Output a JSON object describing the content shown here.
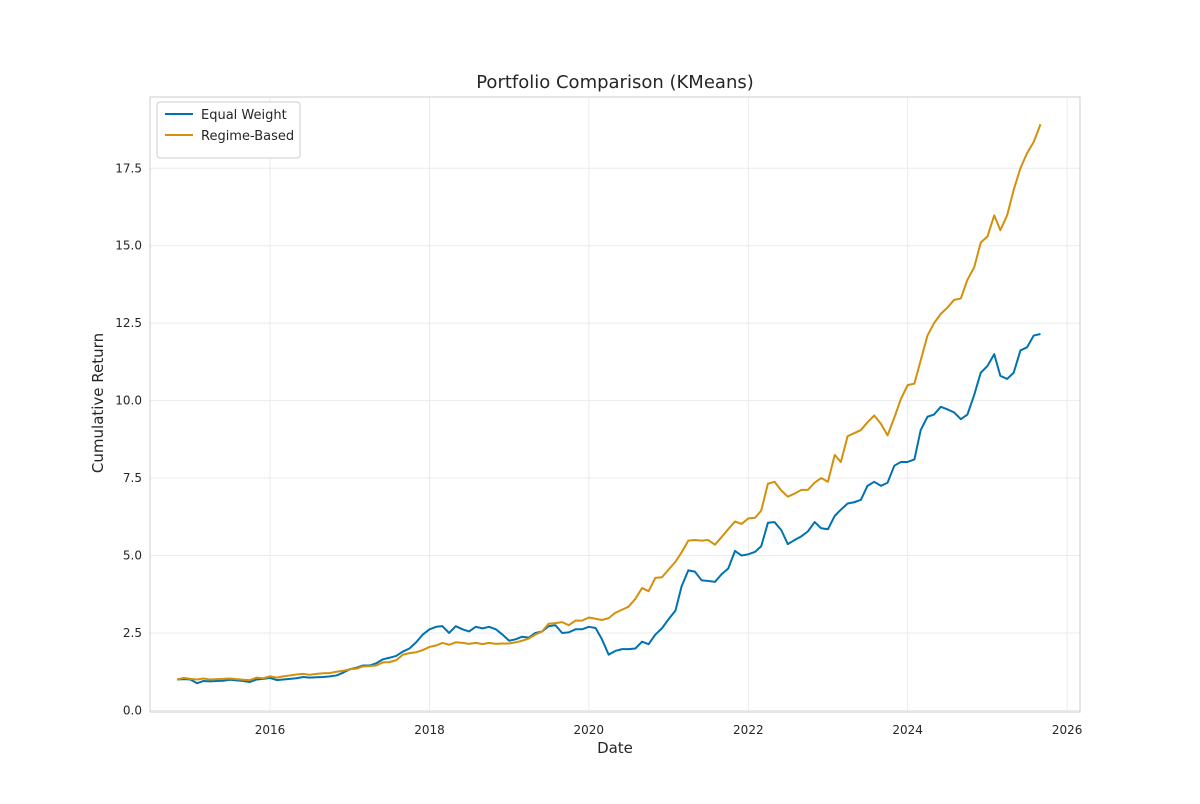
{
  "chart_data": {
    "type": "line",
    "title": "Portfolio Comparison (KMeans)",
    "xlabel": "Date",
    "ylabel": "Cumulative Return",
    "x_is_date": true,
    "xlim": [
      "2014-06-30",
      "2026-03-01"
    ],
    "ylim": [
      -0.05,
      19.8
    ],
    "x_ticks": [
      {
        "date": "2016-01-01",
        "label": "2016"
      },
      {
        "date": "2018-01-01",
        "label": "2018"
      },
      {
        "date": "2020-01-01",
        "label": "2020"
      },
      {
        "date": "2022-01-01",
        "label": "2022"
      },
      {
        "date": "2024-01-01",
        "label": "2024"
      },
      {
        "date": "2026-01-01",
        "label": "2026"
      }
    ],
    "y_ticks": [
      {
        "value": 0,
        "label": "0.0"
      },
      {
        "value": 2.5,
        "label": "2.5"
      },
      {
        "value": 5,
        "label": "5.0"
      },
      {
        "value": 7.5,
        "label": "7.5"
      },
      {
        "value": 10,
        "label": "10.0"
      },
      {
        "value": 12.5,
        "label": "12.5"
      },
      {
        "value": 15,
        "label": "15.0"
      },
      {
        "value": 17.5,
        "label": "17.5"
      }
    ],
    "grid": true,
    "legend": "upper-left",
    "series": [
      {
        "name": "Equal Weight",
        "color": "#0072b2",
        "points": [
          [
            "2014-11-01",
            1.0
          ],
          [
            "2014-12-01",
            1.01
          ],
          [
            "2015-01-01",
            1.0
          ],
          [
            "2015-02-01",
            0.88
          ],
          [
            "2015-03-01",
            0.95
          ],
          [
            "2015-04-01",
            0.94
          ],
          [
            "2015-05-01",
            0.95
          ],
          [
            "2015-06-01",
            0.96
          ],
          [
            "2015-07-01",
            0.99
          ],
          [
            "2015-08-01",
            0.97
          ],
          [
            "2015-09-01",
            0.95
          ],
          [
            "2015-10-01",
            0.92
          ],
          [
            "2015-11-01",
            1.0
          ],
          [
            "2015-12-01",
            1.02
          ],
          [
            "2016-01-01",
            1.05
          ],
          [
            "2016-02-01",
            0.98
          ],
          [
            "2016-03-01",
            1.0
          ],
          [
            "2016-04-01",
            1.02
          ],
          [
            "2016-05-01",
            1.04
          ],
          [
            "2016-06-01",
            1.08
          ],
          [
            "2016-07-01",
            1.06
          ],
          [
            "2016-08-01",
            1.07
          ],
          [
            "2016-09-01",
            1.08
          ],
          [
            "2016-10-01",
            1.1
          ],
          [
            "2016-11-01",
            1.13
          ],
          [
            "2016-12-01",
            1.22
          ],
          [
            "2017-01-01",
            1.33
          ],
          [
            "2017-02-01",
            1.38
          ],
          [
            "2017-03-01",
            1.45
          ],
          [
            "2017-04-01",
            1.45
          ],
          [
            "2017-05-01",
            1.52
          ],
          [
            "2017-06-01",
            1.65
          ],
          [
            "2017-07-01",
            1.7
          ],
          [
            "2017-08-01",
            1.76
          ],
          [
            "2017-09-01",
            1.9
          ],
          [
            "2017-10-01",
            2.0
          ],
          [
            "2017-11-01",
            2.2
          ],
          [
            "2017-12-01",
            2.45
          ],
          [
            "2018-01-01",
            2.62
          ],
          [
            "2018-02-01",
            2.7
          ],
          [
            "2018-03-01",
            2.72
          ],
          [
            "2018-04-01",
            2.5
          ],
          [
            "2018-05-01",
            2.72
          ],
          [
            "2018-06-01",
            2.62
          ],
          [
            "2018-07-01",
            2.55
          ],
          [
            "2018-08-01",
            2.7
          ],
          [
            "2018-09-01",
            2.65
          ],
          [
            "2018-10-01",
            2.7
          ],
          [
            "2018-11-01",
            2.62
          ],
          [
            "2018-12-01",
            2.45
          ],
          [
            "2019-01-01",
            2.25
          ],
          [
            "2019-02-01",
            2.3
          ],
          [
            "2019-03-01",
            2.38
          ],
          [
            "2019-04-01",
            2.35
          ],
          [
            "2019-05-01",
            2.5
          ],
          [
            "2019-06-01",
            2.55
          ],
          [
            "2019-07-01",
            2.72
          ],
          [
            "2019-08-01",
            2.75
          ],
          [
            "2019-09-01",
            2.5
          ],
          [
            "2019-10-01",
            2.52
          ],
          [
            "2019-11-01",
            2.62
          ],
          [
            "2019-12-01",
            2.62
          ],
          [
            "2020-01-01",
            2.7
          ],
          [
            "2020-02-01",
            2.66
          ],
          [
            "2020-03-01",
            2.3
          ],
          [
            "2020-04-01",
            1.8
          ],
          [
            "2020-05-01",
            1.92
          ],
          [
            "2020-06-01",
            1.98
          ],
          [
            "2020-07-01",
            1.98
          ],
          [
            "2020-08-01",
            2.0
          ],
          [
            "2020-09-01",
            2.22
          ],
          [
            "2020-10-01",
            2.14
          ],
          [
            "2020-11-01",
            2.45
          ],
          [
            "2020-12-01",
            2.65
          ],
          [
            "2021-01-01",
            2.95
          ],
          [
            "2021-02-01",
            3.22
          ],
          [
            "2021-03-01",
            4.0
          ],
          [
            "2021-04-01",
            4.52
          ],
          [
            "2021-05-01",
            4.48
          ],
          [
            "2021-06-01",
            4.2
          ],
          [
            "2021-07-01",
            4.18
          ],
          [
            "2021-08-01",
            4.15
          ],
          [
            "2021-09-01",
            4.4
          ],
          [
            "2021-10-01",
            4.58
          ],
          [
            "2021-11-01",
            5.15
          ],
          [
            "2021-12-01",
            5.0
          ],
          [
            "2022-01-01",
            5.04
          ],
          [
            "2022-02-01",
            5.12
          ],
          [
            "2022-03-01",
            5.3
          ],
          [
            "2022-04-01",
            6.06
          ],
          [
            "2022-05-01",
            6.08
          ],
          [
            "2022-06-01",
            5.82
          ],
          [
            "2022-07-01",
            5.37
          ],
          [
            "2022-08-01",
            5.5
          ],
          [
            "2022-09-01",
            5.62
          ],
          [
            "2022-10-01",
            5.78
          ],
          [
            "2022-11-01",
            6.08
          ],
          [
            "2022-12-01",
            5.88
          ],
          [
            "2023-01-01",
            5.85
          ],
          [
            "2023-02-01",
            6.28
          ],
          [
            "2023-03-01",
            6.48
          ],
          [
            "2023-04-01",
            6.68
          ],
          [
            "2023-05-01",
            6.72
          ],
          [
            "2023-06-01",
            6.8
          ],
          [
            "2023-07-01",
            7.25
          ],
          [
            "2023-08-01",
            7.38
          ],
          [
            "2023-09-01",
            7.25
          ],
          [
            "2023-10-01",
            7.35
          ],
          [
            "2023-11-01",
            7.9
          ],
          [
            "2023-12-01",
            8.02
          ],
          [
            "2024-01-01",
            8.02
          ],
          [
            "2024-02-01",
            8.1
          ],
          [
            "2024-03-01",
            9.05
          ],
          [
            "2024-04-01",
            9.48
          ],
          [
            "2024-05-01",
            9.55
          ],
          [
            "2024-06-01",
            9.8
          ],
          [
            "2024-07-01",
            9.72
          ],
          [
            "2024-08-01",
            9.62
          ],
          [
            "2024-09-01",
            9.4
          ],
          [
            "2024-10-01",
            9.55
          ],
          [
            "2024-11-01",
            10.18
          ],
          [
            "2024-12-01",
            10.9
          ],
          [
            "2025-01-01",
            11.12
          ],
          [
            "2025-02-01",
            11.5
          ],
          [
            "2025-03-01",
            10.8
          ],
          [
            "2025-04-01",
            10.7
          ],
          [
            "2025-05-01",
            10.9
          ],
          [
            "2025-06-01",
            11.62
          ],
          [
            "2025-07-01",
            11.72
          ],
          [
            "2025-08-01",
            12.1
          ],
          [
            "2025-09-01",
            12.15
          ]
        ]
      },
      {
        "name": "Regime-Based",
        "color": "#d4900a",
        "points": [
          [
            "2014-11-01",
            1.0
          ],
          [
            "2014-12-01",
            1.05
          ],
          [
            "2015-01-01",
            1.02
          ],
          [
            "2015-02-01",
            1.0
          ],
          [
            "2015-03-01",
            1.03
          ],
          [
            "2015-04-01",
            1.0
          ],
          [
            "2015-05-01",
            1.01
          ],
          [
            "2015-06-01",
            1.02
          ],
          [
            "2015-07-01",
            1.03
          ],
          [
            "2015-08-01",
            1.01
          ],
          [
            "2015-09-01",
            0.99
          ],
          [
            "2015-10-01",
            0.98
          ],
          [
            "2015-11-01",
            1.06
          ],
          [
            "2015-12-01",
            1.04
          ],
          [
            "2016-01-01",
            1.1
          ],
          [
            "2016-02-01",
            1.06
          ],
          [
            "2016-03-01",
            1.1
          ],
          [
            "2016-04-01",
            1.13
          ],
          [
            "2016-05-01",
            1.16
          ],
          [
            "2016-06-01",
            1.18
          ],
          [
            "2016-07-01",
            1.15
          ],
          [
            "2016-08-01",
            1.18
          ],
          [
            "2016-09-01",
            1.2
          ],
          [
            "2016-10-01",
            1.21
          ],
          [
            "2016-11-01",
            1.25
          ],
          [
            "2016-12-01",
            1.28
          ],
          [
            "2017-01-01",
            1.33
          ],
          [
            "2017-02-01",
            1.35
          ],
          [
            "2017-03-01",
            1.42
          ],
          [
            "2017-04-01",
            1.43
          ],
          [
            "2017-05-01",
            1.45
          ],
          [
            "2017-06-01",
            1.55
          ],
          [
            "2017-07-01",
            1.56
          ],
          [
            "2017-08-01",
            1.62
          ],
          [
            "2017-09-01",
            1.8
          ],
          [
            "2017-10-01",
            1.85
          ],
          [
            "2017-11-01",
            1.88
          ],
          [
            "2017-12-01",
            1.95
          ],
          [
            "2018-01-01",
            2.05
          ],
          [
            "2018-02-01",
            2.1
          ],
          [
            "2018-03-01",
            2.18
          ],
          [
            "2018-04-01",
            2.12
          ],
          [
            "2018-05-01",
            2.2
          ],
          [
            "2018-06-01",
            2.18
          ],
          [
            "2018-07-01",
            2.15
          ],
          [
            "2018-08-01",
            2.18
          ],
          [
            "2018-09-01",
            2.14
          ],
          [
            "2018-10-01",
            2.18
          ],
          [
            "2018-11-01",
            2.15
          ],
          [
            "2018-12-01",
            2.16
          ],
          [
            "2019-01-01",
            2.16
          ],
          [
            "2019-02-01",
            2.2
          ],
          [
            "2019-03-01",
            2.25
          ],
          [
            "2019-04-01",
            2.32
          ],
          [
            "2019-05-01",
            2.45
          ],
          [
            "2019-06-01",
            2.55
          ],
          [
            "2019-07-01",
            2.8
          ],
          [
            "2019-08-01",
            2.82
          ],
          [
            "2019-09-01",
            2.85
          ],
          [
            "2019-10-01",
            2.75
          ],
          [
            "2019-11-01",
            2.9
          ],
          [
            "2019-12-01",
            2.9
          ],
          [
            "2020-01-01",
            3.0
          ],
          [
            "2020-02-01",
            2.96
          ],
          [
            "2020-03-01",
            2.92
          ],
          [
            "2020-04-01",
            2.98
          ],
          [
            "2020-05-01",
            3.15
          ],
          [
            "2020-06-01",
            3.25
          ],
          [
            "2020-07-01",
            3.35
          ],
          [
            "2020-08-01",
            3.6
          ],
          [
            "2020-09-01",
            3.95
          ],
          [
            "2020-10-01",
            3.85
          ],
          [
            "2020-11-01",
            4.28
          ],
          [
            "2020-12-01",
            4.3
          ],
          [
            "2021-01-01",
            4.55
          ],
          [
            "2021-02-01",
            4.8
          ],
          [
            "2021-03-01",
            5.1
          ],
          [
            "2021-04-01",
            5.48
          ],
          [
            "2021-05-01",
            5.5
          ],
          [
            "2021-06-01",
            5.48
          ],
          [
            "2021-07-01",
            5.5
          ],
          [
            "2021-08-01",
            5.35
          ],
          [
            "2021-09-01",
            5.6
          ],
          [
            "2021-10-01",
            5.85
          ],
          [
            "2021-11-01",
            6.1
          ],
          [
            "2021-12-01",
            6.02
          ],
          [
            "2022-01-01",
            6.2
          ],
          [
            "2022-02-01",
            6.22
          ],
          [
            "2022-03-01",
            6.45
          ],
          [
            "2022-04-01",
            7.32
          ],
          [
            "2022-05-01",
            7.38
          ],
          [
            "2022-06-01",
            7.1
          ],
          [
            "2022-07-01",
            6.9
          ],
          [
            "2022-08-01",
            7.0
          ],
          [
            "2022-09-01",
            7.12
          ],
          [
            "2022-10-01",
            7.12
          ],
          [
            "2022-11-01",
            7.35
          ],
          [
            "2022-12-01",
            7.5
          ],
          [
            "2023-01-01",
            7.38
          ],
          [
            "2023-02-01",
            8.25
          ],
          [
            "2023-03-01",
            8.02
          ],
          [
            "2023-04-01",
            8.85
          ],
          [
            "2023-05-01",
            8.95
          ],
          [
            "2023-06-01",
            9.05
          ],
          [
            "2023-07-01",
            9.3
          ],
          [
            "2023-08-01",
            9.52
          ],
          [
            "2023-09-01",
            9.25
          ],
          [
            "2023-10-01",
            8.88
          ],
          [
            "2023-11-01",
            9.45
          ],
          [
            "2023-12-01",
            10.05
          ],
          [
            "2024-01-01",
            10.5
          ],
          [
            "2024-02-01",
            10.55
          ],
          [
            "2024-03-01",
            11.3
          ],
          [
            "2024-04-01",
            12.1
          ],
          [
            "2024-05-01",
            12.5
          ],
          [
            "2024-06-01",
            12.8
          ],
          [
            "2024-07-01",
            13.0
          ],
          [
            "2024-08-01",
            13.25
          ],
          [
            "2024-09-01",
            13.3
          ],
          [
            "2024-10-01",
            13.9
          ],
          [
            "2024-11-01",
            14.3
          ],
          [
            "2024-12-01",
            15.1
          ],
          [
            "2025-01-01",
            15.3
          ],
          [
            "2025-02-01",
            15.98
          ],
          [
            "2025-03-01",
            15.5
          ],
          [
            "2025-04-01",
            15.98
          ],
          [
            "2025-05-01",
            16.8
          ],
          [
            "2025-06-01",
            17.5
          ],
          [
            "2025-07-01",
            17.98
          ],
          [
            "2025-08-01",
            18.35
          ],
          [
            "2025-09-01",
            18.92
          ]
        ]
      }
    ]
  }
}
